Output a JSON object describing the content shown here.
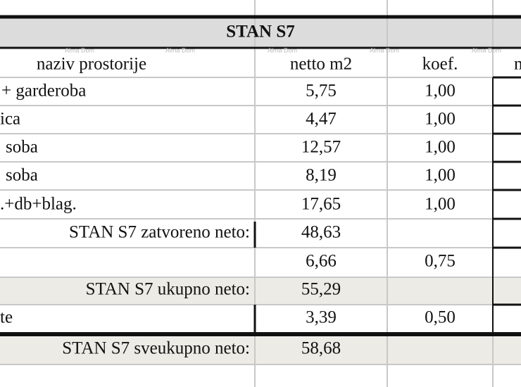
{
  "table": {
    "title": "STAN S7",
    "headers": [
      "naziv prostorije",
      "netto m2",
      "koef.",
      "m"
    ],
    "rows": [
      {
        "name": "+ garderoba",
        "netto": "5,75",
        "koef": "1,00"
      },
      {
        "name": "ica",
        "netto": "4,47",
        "koef": "1,00"
      },
      {
        "name": "soba",
        "netto": "12,57",
        "koef": "1,00"
      },
      {
        "name": "soba",
        "netto": "8,19",
        "koef": "1,00"
      },
      {
        "name": ".+db+blag.",
        "netto": "17,65",
        "koef": "1,00"
      },
      {
        "label": "STAN S7 zatvoreno neto:",
        "netto": "48,63"
      },
      {
        "netto": "6,66",
        "koef": "0,75"
      },
      {
        "label": "STAN S7 ukupno neto:",
        "netto": "55,29"
      },
      {
        "name": "te",
        "netto": "3,39",
        "koef": "0,50"
      },
      {
        "label": "STAN S7 sveukupno neto:",
        "netto": "58,68"
      }
    ],
    "watermarks": [
      "Alma Dom",
      "Alma Dom",
      "Alma Dom",
      "Alma Dom",
      "Alma Dom"
    ]
  }
}
